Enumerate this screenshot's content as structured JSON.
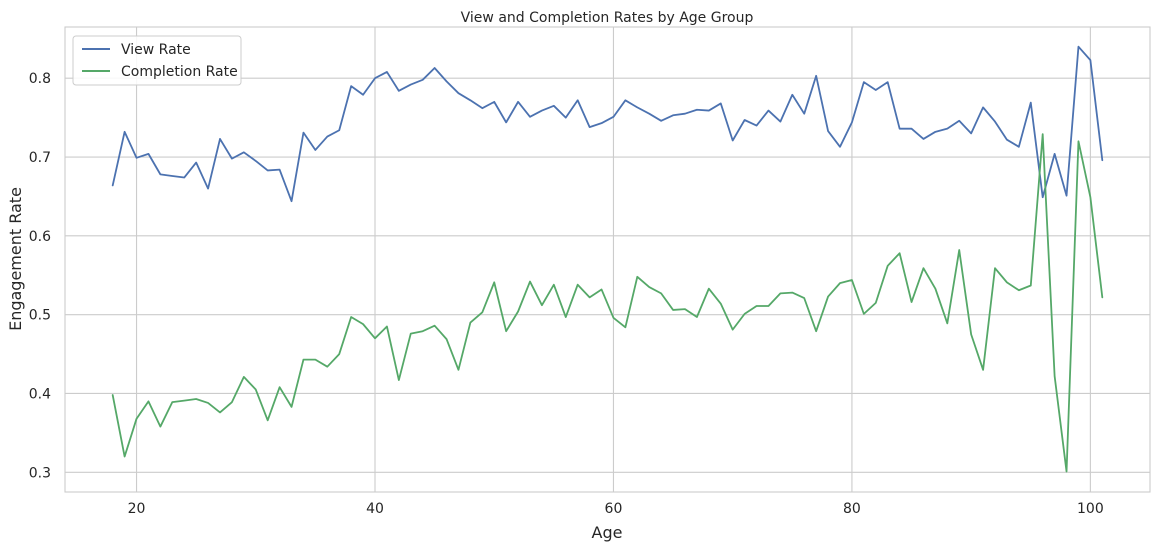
{
  "chart_data": {
    "type": "line",
    "title": "View and Completion Rates by Age Group",
    "xlabel": "Age",
    "ylabel": "Engagement Rate",
    "xlim": [
      14,
      105
    ],
    "ylim": [
      0.275,
      0.865
    ],
    "xticks": [
      20,
      40,
      60,
      80,
      100
    ],
    "yticks": [
      0.3,
      0.4,
      0.5,
      0.6,
      0.7,
      0.8
    ],
    "grid": true,
    "legend_position": "top-left",
    "x": [
      18,
      19,
      20,
      21,
      22,
      23,
      24,
      25,
      26,
      27,
      28,
      29,
      30,
      31,
      32,
      33,
      34,
      35,
      36,
      37,
      38,
      39,
      40,
      41,
      42,
      43,
      44,
      45,
      46,
      47,
      48,
      49,
      50,
      51,
      52,
      53,
      54,
      55,
      56,
      57,
      58,
      59,
      60,
      61,
      62,
      63,
      64,
      65,
      66,
      67,
      68,
      69,
      70,
      71,
      72,
      73,
      74,
      75,
      76,
      77,
      78,
      79,
      80,
      81,
      82,
      83,
      84,
      85,
      86,
      87,
      88,
      89,
      90,
      91,
      92,
      93,
      94,
      95,
      96,
      97,
      98,
      99,
      100,
      101
    ],
    "series": [
      {
        "name": "View Rate",
        "color": "#4c72b0",
        "values": [
          0.664,
          0.732,
          0.699,
          0.704,
          0.678,
          0.676,
          0.674,
          0.693,
          0.66,
          0.723,
          0.698,
          0.706,
          0.695,
          0.683,
          0.684,
          0.644,
          0.731,
          0.709,
          0.726,
          0.734,
          0.79,
          0.779,
          0.8,
          0.808,
          0.784,
          0.792,
          0.798,
          0.813,
          0.796,
          0.781,
          0.772,
          0.762,
          0.77,
          0.744,
          0.77,
          0.751,
          0.759,
          0.765,
          0.75,
          0.772,
          0.738,
          0.743,
          0.751,
          0.772,
          0.763,
          0.755,
          0.746,
          0.753,
          0.755,
          0.76,
          0.759,
          0.768,
          0.721,
          0.747,
          0.74,
          0.759,
          0.745,
          0.779,
          0.755,
          0.803,
          0.733,
          0.713,
          0.744,
          0.795,
          0.785,
          0.795,
          0.736,
          0.736,
          0.723,
          0.732,
          0.736,
          0.746,
          0.73,
          0.763,
          0.745,
          0.722,
          0.713,
          0.769,
          0.649,
          0.704,
          0.651,
          0.84,
          0.823,
          0.696
        ]
      },
      {
        "name": "Completion Rate",
        "color": "#55a868",
        "values": [
          0.398,
          0.32,
          0.368,
          0.39,
          0.358,
          0.389,
          0.391,
          0.393,
          0.388,
          0.376,
          0.389,
          0.421,
          0.405,
          0.366,
          0.408,
          0.383,
          0.443,
          0.443,
          0.434,
          0.45,
          0.497,
          0.488,
          0.47,
          0.485,
          0.417,
          0.476,
          0.479,
          0.486,
          0.469,
          0.43,
          0.49,
          0.503,
          0.541,
          0.479,
          0.504,
          0.542,
          0.512,
          0.538,
          0.497,
          0.538,
          0.522,
          0.532,
          0.496,
          0.484,
          0.548,
          0.535,
          0.527,
          0.506,
          0.507,
          0.497,
          0.533,
          0.514,
          0.481,
          0.501,
          0.511,
          0.511,
          0.527,
          0.528,
          0.521,
          0.479,
          0.523,
          0.54,
          0.544,
          0.501,
          0.515,
          0.562,
          0.578,
          0.516,
          0.559,
          0.533,
          0.489,
          0.582,
          0.475,
          0.43,
          0.559,
          0.541,
          0.531,
          0.537,
          0.729,
          0.422,
          0.301,
          0.72,
          0.649,
          0.522
        ]
      }
    ]
  }
}
